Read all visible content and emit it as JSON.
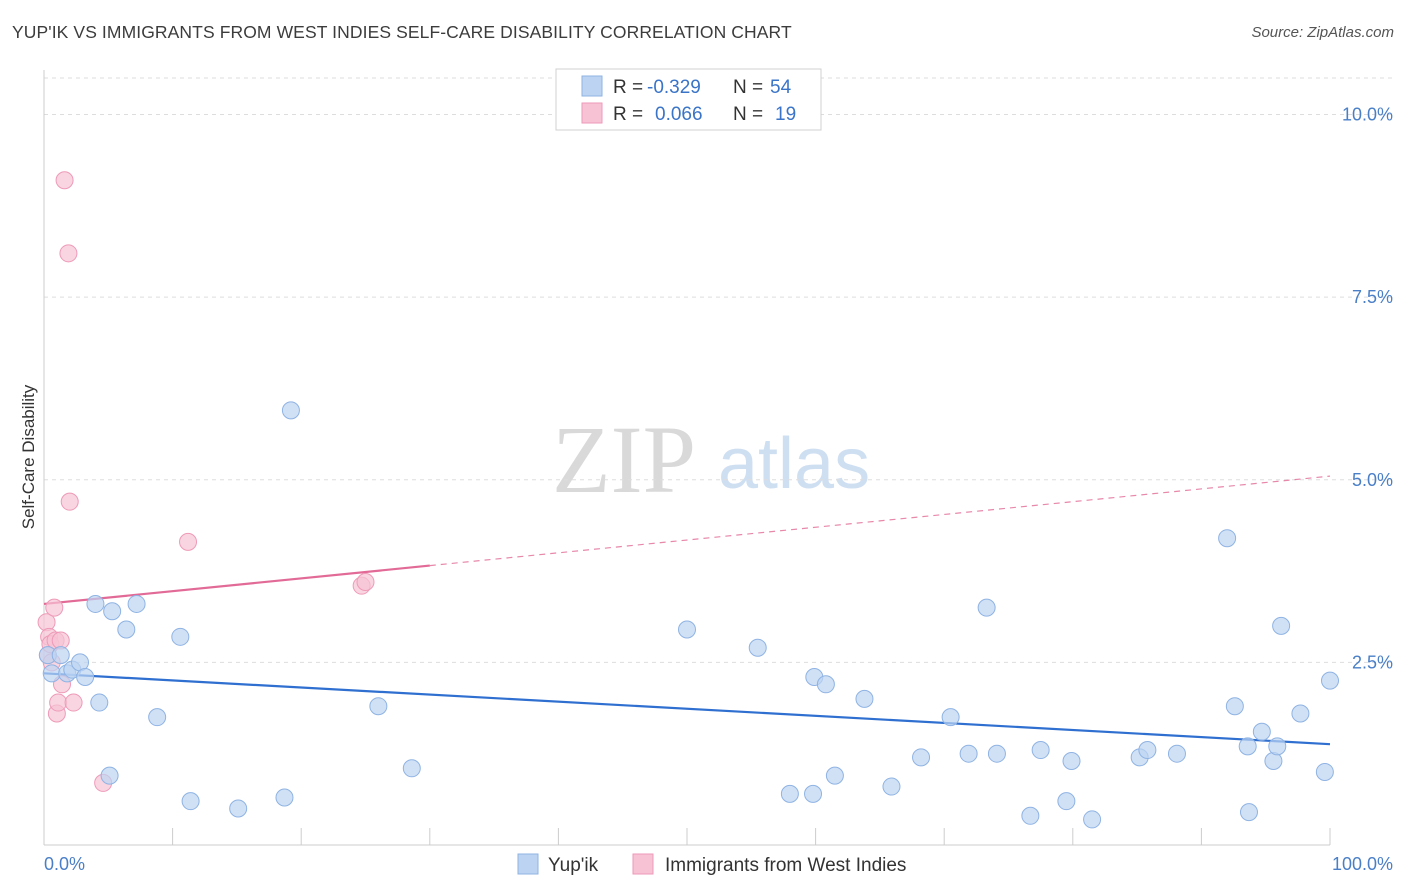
{
  "title": "YUP'IK VS IMMIGRANTS FROM WEST INDIES SELF-CARE DISABILITY CORRELATION CHART",
  "source": "Source: ZipAtlas.com",
  "watermark": {
    "part1": "ZIP",
    "part2": "atlas"
  },
  "legend": {
    "row1": {
      "r_label": "R =",
      "r_value": "-0.329",
      "n_label": "N =",
      "n_value": "54",
      "color": "#aecbf0"
    },
    "row2": {
      "r_label": "R =",
      "r_value": "0.066",
      "n_label": "N =",
      "n_value": "19",
      "color": "#f6bcd0"
    }
  },
  "bottom_legend": [
    "Yup'ik",
    "Immigrants from West Indies"
  ],
  "colors": {
    "series1_fill": "#bcd4f2",
    "series1_stroke": "#8fb3e3",
    "series1_line": "#2f6fd0",
    "series2_fill": "#f7c3d4",
    "series2_stroke": "#ee9ab8",
    "series2_line": "#e26a96",
    "grid": "#dddddd",
    "axis": "#cccccc",
    "tick_text": "#4a7fc7"
  },
  "chart_data": {
    "type": "scatter",
    "title": "YUP'IK VS IMMIGRANTS FROM WEST INDIES SELF-CARE DISABILITY CORRELATION CHART",
    "xlabel": "",
    "ylabel": "Self-Care Disability",
    "xlim": [
      0,
      100
    ],
    "ylim": [
      0,
      10.5
    ],
    "x_ticks": [
      "0.0%",
      "100.0%"
    ],
    "y_ticks": [
      {
        "value": 2.5,
        "label": "2.5%"
      },
      {
        "value": 5.0,
        "label": "5.0%"
      },
      {
        "value": 7.5,
        "label": "7.5%"
      },
      {
        "value": 10.0,
        "label": "10.0%"
      }
    ],
    "grid": true,
    "legend_position": "top-center",
    "series": [
      {
        "name": "Yup'ik",
        "points": [
          [
            0.3,
            2.6
          ],
          [
            0.6,
            2.35
          ],
          [
            1.3,
            2.6
          ],
          [
            1.8,
            2.35
          ],
          [
            2.2,
            2.4
          ],
          [
            2.8,
            2.5
          ],
          [
            3.2,
            2.3
          ],
          [
            4.0,
            3.3
          ],
          [
            4.3,
            1.95
          ],
          [
            5.1,
            0.95
          ],
          [
            5.3,
            3.2
          ],
          [
            6.4,
            2.95
          ],
          [
            7.2,
            3.3
          ],
          [
            8.8,
            1.75
          ],
          [
            10.6,
            2.85
          ],
          [
            11.4,
            0.6
          ],
          [
            15.1,
            0.5
          ],
          [
            18.7,
            0.65
          ],
          [
            19.2,
            5.95
          ],
          [
            26.0,
            1.9
          ],
          [
            28.6,
            1.05
          ],
          [
            50.0,
            2.95
          ],
          [
            55.5,
            2.7
          ],
          [
            58.0,
            0.7
          ],
          [
            59.8,
            0.7
          ],
          [
            59.9,
            2.3
          ],
          [
            60.8,
            2.2
          ],
          [
            61.5,
            0.95
          ],
          [
            63.8,
            2.0
          ],
          [
            65.9,
            0.8
          ],
          [
            68.2,
            1.2
          ],
          [
            70.5,
            1.75
          ],
          [
            71.9,
            1.25
          ],
          [
            73.3,
            3.25
          ],
          [
            74.1,
            1.25
          ],
          [
            76.7,
            0.4
          ],
          [
            77.5,
            1.3
          ],
          [
            79.5,
            0.6
          ],
          [
            79.9,
            1.15
          ],
          [
            81.5,
            0.35
          ],
          [
            85.2,
            1.2
          ],
          [
            85.8,
            1.3
          ],
          [
            88.1,
            1.25
          ],
          [
            92.0,
            4.2
          ],
          [
            92.6,
            1.9
          ],
          [
            93.6,
            1.35
          ],
          [
            93.7,
            0.45
          ],
          [
            94.7,
            1.55
          ],
          [
            95.6,
            1.15
          ],
          [
            95.9,
            1.35
          ],
          [
            96.2,
            3.0
          ],
          [
            97.7,
            1.8
          ],
          [
            99.6,
            1.0
          ],
          [
            100.0,
            2.25
          ]
        ],
        "trend": {
          "x": [
            0,
            100
          ],
          "y": [
            2.35,
            1.38
          ]
        }
      },
      {
        "name": "Immigrants from West Indies",
        "points": [
          [
            0.2,
            3.05
          ],
          [
            0.3,
            2.6
          ],
          [
            0.4,
            2.85
          ],
          [
            0.5,
            2.75
          ],
          [
            0.6,
            2.5
          ],
          [
            0.8,
            3.25
          ],
          [
            0.9,
            2.8
          ],
          [
            1.0,
            1.8
          ],
          [
            1.1,
            1.95
          ],
          [
            1.3,
            2.8
          ],
          [
            1.4,
            2.2
          ],
          [
            1.6,
            9.1
          ],
          [
            1.9,
            8.1
          ],
          [
            2.0,
            4.7
          ],
          [
            2.3,
            1.95
          ],
          [
            4.6,
            0.85
          ],
          [
            11.2,
            4.15
          ],
          [
            24.7,
            3.55
          ],
          [
            25.0,
            3.6
          ]
        ],
        "trend": {
          "x": [
            0,
            100
          ],
          "y": [
            3.3,
            5.05
          ],
          "solid_until_x": 30
        }
      }
    ]
  }
}
